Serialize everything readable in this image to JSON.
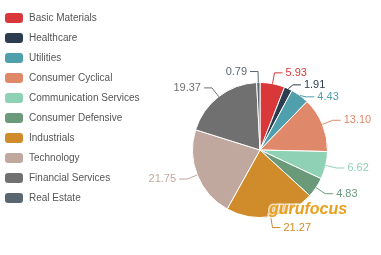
{
  "chart_data": {
    "type": "pie",
    "categories": [
      "Basic Materials",
      "Healthcare",
      "Utilities",
      "Consumer Cyclical",
      "Communication Services",
      "Consumer Defensive",
      "Industrials",
      "Technology",
      "Financial Services",
      "Real Estate"
    ],
    "values": [
      5.93,
      1.91,
      4.43,
      13.1,
      6.62,
      4.83,
      21.27,
      21.75,
      19.37,
      0.79
    ],
    "value_labels": [
      "5.93",
      "1.91",
      "4.43",
      "13.10",
      "6.62",
      "4.83",
      "21.27",
      "21.75",
      "19.37",
      "0.79"
    ],
    "colors": [
      "#d9383a",
      "#2b3d4f",
      "#4f9fad",
      "#e0896a",
      "#8fd1b5",
      "#6a9a7a",
      "#d08c2a",
      "#c0a89e",
      "#707070",
      "#5a6670"
    ],
    "legend": "top-left",
    "data_labels": true,
    "annotations": [
      "gurufocus"
    ]
  }
}
